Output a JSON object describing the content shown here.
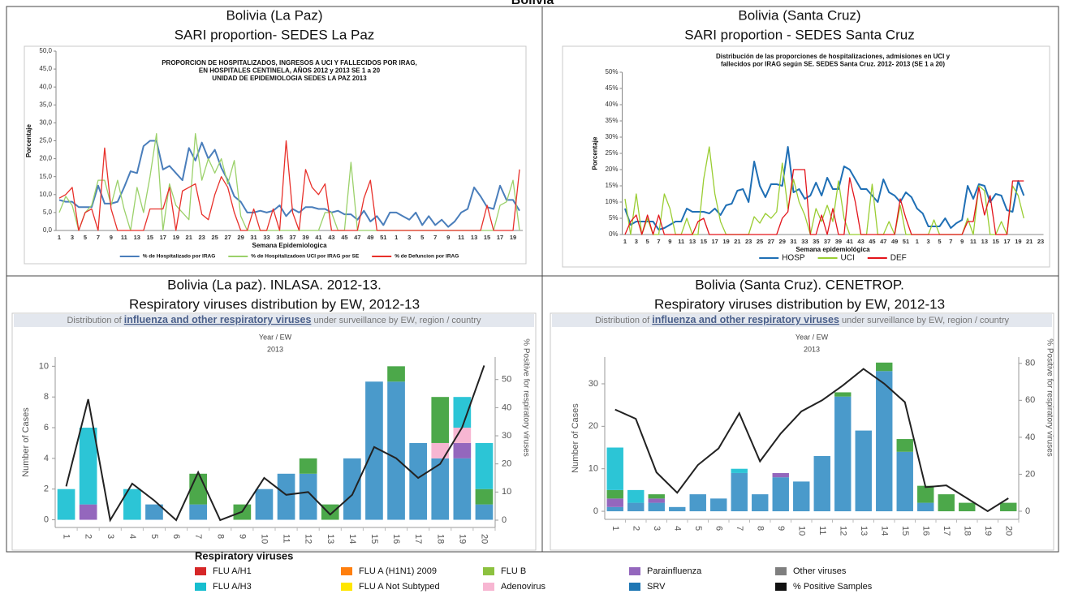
{
  "title": "Bolivia",
  "chart_data": [
    {
      "type": "line",
      "title": [
        "Bolivia (La Paz)",
        "SARI proportion- SEDES La Paz"
      ],
      "subtitle": [
        "PROPORCION DE HOSPITALIZADOS, INGRESOS A UCI Y FALLECIDOS POR IRAG,",
        "EN HOSPITALES CENTINELA, AÑOS 2012 y 2013 SE 1 a 20",
        "UNIDAD DE EPIDEMIOLOGIA SEDES LA PAZ 2013"
      ],
      "xlabel": "Semana Epidemiologica",
      "ylabel": "Porcentaje",
      "categories": [
        1,
        null,
        3,
        null,
        5,
        null,
        7,
        null,
        9,
        null,
        11,
        null,
        13,
        null,
        15,
        null,
        17,
        null,
        19,
        null,
        21,
        null,
        23,
        null,
        25,
        null,
        27,
        null,
        29,
        null,
        31,
        null,
        33,
        null,
        35,
        null,
        37,
        null,
        39,
        null,
        41,
        null,
        43,
        null,
        45,
        null,
        47,
        null,
        49,
        null,
        51,
        null,
        1,
        null,
        3,
        null,
        5,
        null,
        7,
        null,
        9,
        null,
        11,
        null,
        13,
        null,
        15,
        null,
        17,
        null,
        19,
        null
      ],
      "series": [
        {
          "name": "% de Hospitalizado por IRAG",
          "color": "#4a7ebb",
          "values": [
            8.5,
            8,
            8,
            6.5,
            6.5,
            6.5,
            12.5,
            7.5,
            7.5,
            8,
            12,
            16.5,
            16,
            23.5,
            25,
            25,
            17,
            18,
            16,
            14,
            23,
            19.5,
            24.5,
            20,
            22.5,
            17.5,
            14,
            9.5,
            8,
            5,
            5,
            5.5,
            5,
            5.5,
            7,
            4,
            6,
            5,
            6.5,
            6.5,
            6,
            6,
            5,
            5.5,
            4.5,
            4.5,
            3,
            5.5,
            2.5,
            4,
            1.5,
            5,
            5,
            4,
            3,
            5,
            1.5,
            4,
            1.5,
            3,
            1,
            2.5,
            5,
            6,
            12,
            9.5,
            6.5,
            6,
            12.5,
            8.5,
            8.5,
            5.5
          ]
        },
        {
          "name": "% de Hospitalizadoen UCI por IRAG por SE",
          "color": "#9bd16a",
          "values": [
            5,
            9.5,
            7,
            0,
            5,
            7,
            14,
            14,
            7,
            14,
            6,
            0,
            12,
            5,
            15,
            27,
            0,
            13,
            7,
            5,
            3,
            27,
            14,
            20,
            16,
            20,
            13,
            19.5,
            4,
            0,
            0,
            0,
            0,
            0,
            0,
            0,
            0,
            0,
            0,
            0,
            0,
            5,
            5,
            0,
            0,
            19,
            0,
            0,
            0,
            0,
            0,
            0,
            0,
            0,
            0,
            0,
            0,
            0,
            0,
            0,
            0,
            0,
            0,
            0,
            0,
            0,
            0,
            0,
            7,
            8,
            14,
            0
          ]
        },
        {
          "name": "% de Defuncion por IRAG",
          "color": "#e8302a",
          "values": [
            9,
            10,
            12,
            0,
            5,
            6,
            0,
            23,
            6,
            0,
            0,
            0,
            0,
            0,
            6,
            6,
            6,
            12,
            0,
            11,
            12,
            13,
            4.5,
            3,
            10,
            15,
            12,
            5,
            0,
            0,
            6,
            0,
            0,
            6,
            0,
            25,
            5,
            0,
            17,
            12,
            10,
            13,
            0,
            0,
            0,
            0,
            0,
            9,
            14,
            0,
            0,
            0,
            0,
            0,
            0,
            0,
            0,
            0,
            0,
            0,
            0,
            0,
            0,
            0,
            0,
            0,
            7,
            0,
            0,
            0,
            0,
            17
          ]
        }
      ],
      "ylim": [
        0,
        50
      ],
      "yticks": [
        {
          "value": 0,
          "label": "0,0"
        },
        {
          "value": 5,
          "label": "5,0"
        },
        {
          "value": 10,
          "label": "10,0"
        },
        {
          "value": 15,
          "label": "15,0"
        },
        {
          "value": 20,
          "label": "20,0"
        },
        {
          "value": 25,
          "label": "25,0"
        },
        {
          "value": 30,
          "label": "30,0"
        },
        {
          "value": 35,
          "label": "35,0"
        },
        {
          "value": 40,
          "label": "40,0"
        },
        {
          "value": 45,
          "label": "45,0"
        },
        {
          "value": 50,
          "label": "50,0"
        }
      ],
      "grid": false,
      "legend": "bottom"
    },
    {
      "type": "line",
      "title": [
        "Bolivia (Santa Cruz)",
        "SARI proportion - SEDES Santa Cruz"
      ],
      "subtitle": [
        "Distribución de las proporciones de hospitalizaciones, admisiones en UCI y",
        "fallecidos por IRAG según SE. SEDES Santa Cruz. 2012- 2013 (SE 1 a  20)"
      ],
      "xlabel": "Semana epidemiológica",
      "ylabel": "Porcentaje",
      "categories": [
        1,
        null,
        3,
        null,
        5,
        null,
        7,
        null,
        9,
        null,
        11,
        null,
        13,
        null,
        15,
        null,
        17,
        null,
        19,
        null,
        21,
        null,
        23,
        null,
        25,
        null,
        27,
        null,
        29,
        null,
        31,
        null,
        33,
        null,
        35,
        null,
        37,
        null,
        39,
        null,
        41,
        null,
        43,
        null,
        45,
        null,
        47,
        null,
        49,
        null,
        51,
        null,
        1,
        null,
        3,
        null,
        5,
        null,
        7,
        null,
        9,
        null,
        11,
        null,
        13,
        null,
        15,
        null,
        17,
        null,
        19,
        null,
        21,
        null,
        23
      ],
      "series": [
        {
          "name": "HOSP",
          "color": "#1f6fb5",
          "values": [
            8,
            3,
            4,
            4,
            4,
            4,
            1.5,
            2,
            3,
            4,
            4,
            8,
            7,
            7,
            7,
            6.5,
            8,
            6,
            9,
            9.5,
            13.5,
            14,
            10,
            22.5,
            15,
            11.5,
            15.5,
            15.5,
            15,
            27,
            13,
            14,
            11,
            12,
            16,
            12,
            17.5,
            14,
            14,
            21,
            20,
            17,
            14,
            14,
            12,
            10,
            17,
            13,
            12,
            10,
            13,
            11.5,
            8,
            6.5,
            2.5,
            2.5,
            2.5,
            5,
            2,
            3.5,
            4.5,
            15,
            11,
            15.5,
            15,
            10,
            12.5,
            12,
            7.5,
            7,
            16.5,
            12,
            null,
            null,
            null
          ]
        },
        {
          "name": "UCI",
          "color": "#9acd32",
          "values": [
            11,
            0,
            12.5,
            0,
            5,
            0,
            0,
            12.5,
            8,
            0,
            0,
            5,
            0,
            0,
            17,
            27,
            12.5,
            4,
            0,
            0,
            0,
            0,
            0,
            5.5,
            3.5,
            6.5,
            5,
            7,
            22,
            8,
            17,
            10,
            6,
            0,
            8,
            4,
            9,
            4,
            16.5,
            5,
            0,
            0,
            0,
            0,
            15.5,
            0,
            0,
            4,
            0,
            9,
            0,
            0,
            0,
            0,
            0,
            4.5,
            0,
            0,
            0,
            0,
            0,
            5,
            0,
            15,
            13.5,
            0,
            0,
            4,
            0,
            15,
            12,
            5,
            null,
            null,
            null
          ]
        },
        {
          "name": "DEF",
          "color": "#e3141b",
          "values": [
            0,
            4,
            6,
            0,
            6,
            0,
            6,
            0,
            0,
            0,
            0,
            0,
            0,
            4,
            5,
            0,
            0,
            0,
            0,
            0,
            0,
            0,
            0,
            0,
            0,
            0,
            0,
            0,
            5,
            7,
            20,
            20,
            20,
            0,
            0,
            6,
            0,
            8,
            0,
            0,
            17.5,
            10,
            0,
            0,
            0,
            0,
            0,
            0,
            0,
            11,
            5,
            0,
            0,
            0,
            0,
            0,
            0,
            0,
            0,
            0,
            0,
            4,
            4,
            14.5,
            6,
            12,
            0,
            0,
            0,
            16.5,
            16.5,
            16.5,
            null,
            null,
            null
          ]
        }
      ],
      "ylim": [
        0,
        50
      ],
      "yticks": [
        {
          "value": 0,
          "label": "0%"
        },
        {
          "value": 5,
          "label": "5%"
        },
        {
          "value": 10,
          "label": "10%"
        },
        {
          "value": 15,
          "label": "15%"
        },
        {
          "value": 20,
          "label": "20%"
        },
        {
          "value": 25,
          "label": "25%"
        },
        {
          "value": 30,
          "label": "30%"
        },
        {
          "value": 35,
          "label": "35%"
        },
        {
          "value": 40,
          "label": "40%"
        },
        {
          "value": 45,
          "label": "45%"
        },
        {
          "value": 50,
          "label": "50%"
        }
      ],
      "grid": false,
      "legend": "bottom"
    },
    {
      "type": "bar",
      "stacked": true,
      "title": [
        "Bolivia (La paz). INLASA. 2012-13.",
        "Respiratory viruses distribution by EW, 2012-13"
      ],
      "banner": [
        "Distribution of ",
        "influenza and other respiratory viruses",
        " under surveillance by EW, region / country"
      ],
      "header_label": "Year / EW",
      "period": "2013",
      "ylabel": "Number of Cases",
      "y2label": "% Positive for respiratory viruses",
      "categories": [
        1,
        2,
        3,
        4,
        5,
        6,
        7,
        8,
        9,
        10,
        11,
        12,
        13,
        14,
        15,
        16,
        17,
        18,
        19,
        20
      ],
      "series": [
        {
          "name": "SRV",
          "color": "#4a9acb",
          "values": [
            0,
            0,
            0,
            0,
            1,
            0,
            1,
            0,
            0,
            2,
            3,
            3,
            0,
            4,
            9,
            9,
            5,
            4,
            4,
            1
          ]
        },
        {
          "name": "Parainfluenza",
          "color": "#9467bd",
          "values": [
            0,
            1,
            0,
            0,
            0,
            0,
            0,
            0,
            0,
            0,
            0,
            0,
            0,
            0,
            0,
            0,
            0,
            0,
            1,
            0
          ]
        },
        {
          "name": "Adenovirus",
          "color": "#f7b6d2",
          "values": [
            0,
            0,
            0,
            0,
            0,
            0,
            0,
            0,
            0,
            0,
            0,
            0,
            0,
            0,
            0,
            0,
            0,
            1,
            1,
            0
          ]
        },
        {
          "name": "FLU B",
          "color": "#4ca84a",
          "values": [
            0,
            0,
            0,
            0,
            0,
            0,
            2,
            0,
            1,
            0,
            0,
            1,
            1,
            0,
            0,
            1,
            0,
            3,
            0,
            1
          ]
        },
        {
          "name": "FLU A/H3",
          "color": "#2cc5d6",
          "values": [
            2,
            5,
            0,
            2,
            0,
            0,
            0,
            0,
            0,
            0,
            0,
            0,
            0,
            0,
            0,
            0,
            0,
            0,
            2,
            3
          ]
        },
        {
          "name": "% Positive Samples",
          "color": "#222222",
          "type": "line",
          "axis": "y2",
          "values": [
            12,
            43,
            0,
            13,
            7,
            0,
            17,
            0,
            3,
            15,
            9,
            10,
            2,
            9,
            26,
            22,
            15,
            20,
            33,
            55
          ]
        }
      ],
      "ylim": [
        -0.5,
        10.6
      ],
      "yticks": [
        0,
        2,
        4,
        6,
        8,
        10
      ],
      "y2lim": [
        -2.6,
        58
      ],
      "y2ticks": [
        0,
        10,
        20,
        30,
        40,
        50
      ]
    },
    {
      "type": "bar",
      "stacked": true,
      "title": [
        "Bolivia (Santa Cruz). CENETROP.",
        "Respiratory viruses distribution by EW, 2012-13"
      ],
      "banner": [
        "Distribution of ",
        "influenza and other respiratory viruses",
        " under surveillance by EW, region / country"
      ],
      "header_label": "Year / EW",
      "period": "2013",
      "ylabel": "Number of Cases",
      "y2label": "% Positive for respiratory viruses",
      "categories": [
        1,
        2,
        3,
        4,
        5,
        6,
        7,
        8,
        9,
        10,
        11,
        12,
        13,
        14,
        15,
        16,
        17,
        18,
        19,
        20
      ],
      "series": [
        {
          "name": "SRV",
          "color": "#4a9acb",
          "values": [
            1,
            2,
            2,
            1,
            4,
            3,
            9,
            4,
            8,
            7,
            13,
            27,
            19,
            33,
            14,
            2,
            0,
            0,
            0,
            0
          ]
        },
        {
          "name": "Parainfluenza",
          "color": "#9467bd",
          "values": [
            2,
            0,
            1,
            0,
            0,
            0,
            0,
            0,
            1,
            0,
            0,
            0,
            0,
            0,
            0,
            0,
            0,
            0,
            0,
            0
          ]
        },
        {
          "name": "FLU B",
          "color": "#4ca84a",
          "values": [
            2,
            0,
            1,
            0,
            0,
            0,
            0,
            0,
            0,
            0,
            0,
            1,
            0,
            2,
            3,
            4,
            4,
            2,
            0,
            2
          ]
        },
        {
          "name": "FLU A/H3",
          "color": "#2cc5d6",
          "values": [
            10,
            3,
            0,
            0,
            0,
            0,
            1,
            0,
            0,
            0,
            0,
            0,
            0,
            0,
            0,
            0,
            0,
            0,
            0,
            0
          ]
        },
        {
          "name": "% Positive Samples",
          "color": "#222222",
          "type": "line",
          "axis": "y2",
          "values": [
            55,
            50,
            21,
            10,
            25,
            34,
            53,
            27,
            42,
            54,
            60,
            68,
            77,
            69,
            59,
            13,
            14,
            7,
            0,
            7
          ]
        }
      ],
      "ylim": [
        -1.9,
        36.3
      ],
      "yticks": [
        0,
        10,
        20,
        30
      ],
      "y2lim": [
        -4.4,
        83.4
      ],
      "y2ticks": [
        0,
        20,
        40,
        60,
        80
      ]
    }
  ],
  "legend": {
    "title": "Respiratory viruses",
    "items": [
      {
        "name": "FLU A/H1",
        "color": "#d62728"
      },
      {
        "name": "FLU A (H1N1) 2009",
        "color": "#ff7f0e"
      },
      {
        "name": "FLU B",
        "color": "#8cc13f"
      },
      {
        "name": "Parainfluenza",
        "color": "#9467bd"
      },
      {
        "name": "Other viruses",
        "color": "#7f7f7f"
      },
      {
        "name": "FLU A/H3",
        "color": "#17becf"
      },
      {
        "name": "FLU A Not Subtyped",
        "color": "#ffe600"
      },
      {
        "name": "Adenovirus",
        "color": "#f7b6d2"
      },
      {
        "name": "SRV",
        "color": "#1f77b4"
      },
      {
        "name": "% Positive Samples",
        "color": "#111111"
      }
    ]
  }
}
